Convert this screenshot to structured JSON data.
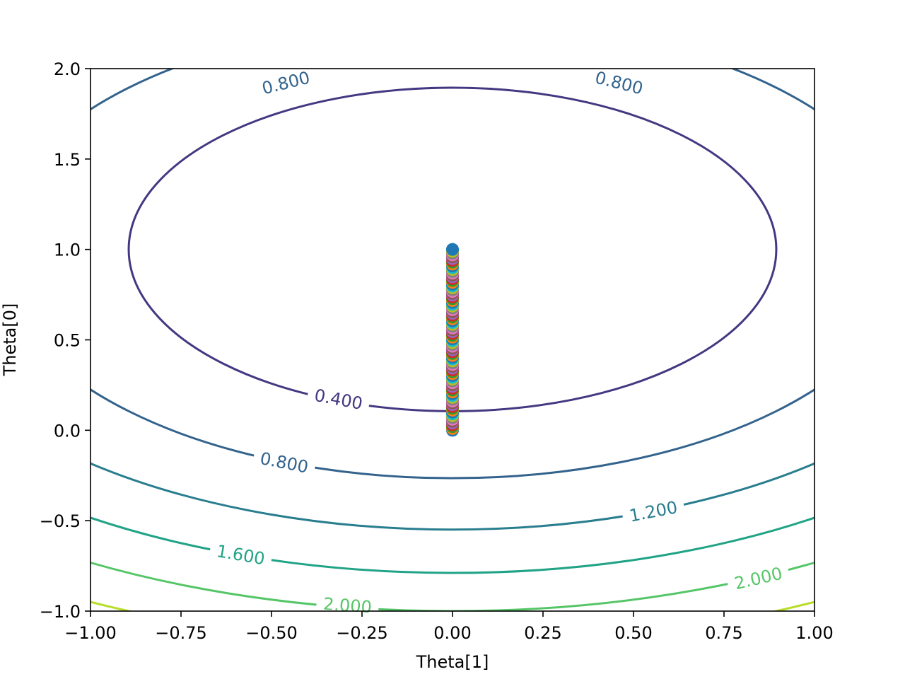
{
  "chart_data": {
    "type": "contour",
    "title": "",
    "xlabel": "Theta[1]",
    "ylabel": "Theta[0]",
    "xlim": [
      -1.0,
      1.0
    ],
    "ylim": [
      -1.0,
      2.0
    ],
    "x_ticks": [
      "−1.00",
      "−0.75",
      "−0.50",
      "−0.25",
      "0.00",
      "0.25",
      "0.50",
      "0.75",
      "1.00"
    ],
    "y_ticks": [
      "−1.0",
      "−0.5",
      "0.0",
      "0.5",
      "1.0",
      "1.5",
      "2.0"
    ],
    "surface": {
      "formula": "0.5*(theta0-1)^2 + 0.5*theta1^2",
      "center": [
        1.0,
        0.0
      ]
    },
    "contour_levels": [
      {
        "level": 0.4,
        "label": "0.400",
        "color": "#453781"
      },
      {
        "level": 0.8,
        "label": "0.800",
        "color": "#33638d"
      },
      {
        "level": 1.2,
        "label": "1.200",
        "color": "#287d8e"
      },
      {
        "level": 1.6,
        "label": "1.600",
        "color": "#20a386"
      },
      {
        "level": 2.0,
        "label": "2.000",
        "color": "#55c667"
      },
      {
        "level": 2.4,
        "label": "",
        "color": "#b8de29"
      }
    ],
    "contour_labels": [
      {
        "text": "0.400",
        "theta1": -0.315,
        "theta0": 0.17,
        "color": "#453781"
      },
      {
        "text": "0.800",
        "theta1": -0.46,
        "theta0": 1.92,
        "color": "#33638d"
      },
      {
        "text": "0.800",
        "theta1": 0.46,
        "theta0": 1.92,
        "color": "#33638d"
      },
      {
        "text": "0.800",
        "theta1": -0.465,
        "theta0": -0.18,
        "color": "#33638d"
      },
      {
        "text": "1.200",
        "theta1": 0.555,
        "theta0": -0.45,
        "color": "#287d8e"
      },
      {
        "text": "1.600",
        "theta1": -0.585,
        "theta0": -0.69,
        "color": "#20a386"
      },
      {
        "text": "2.000",
        "theta1": 0.845,
        "theta0": -0.82,
        "color": "#55c667"
      },
      {
        "text": "2.000",
        "theta1": -0.29,
        "theta0": -0.97,
        "color": "#55c667"
      }
    ],
    "scatter_series": {
      "name": "",
      "theta1": 0.0,
      "theta0_start": 0.0,
      "theta0_end": 1.0,
      "count": 100,
      "colors": [
        "#1f77b4",
        "#ff7f0e",
        "#2ca02c",
        "#d62728",
        "#9467bd",
        "#8c564b",
        "#e377c2",
        "#7f7f7f",
        "#bcbd22",
        "#17becf"
      ]
    },
    "grid": false,
    "colors": {
      "axes": "#000000",
      "background": "#ffffff"
    }
  }
}
